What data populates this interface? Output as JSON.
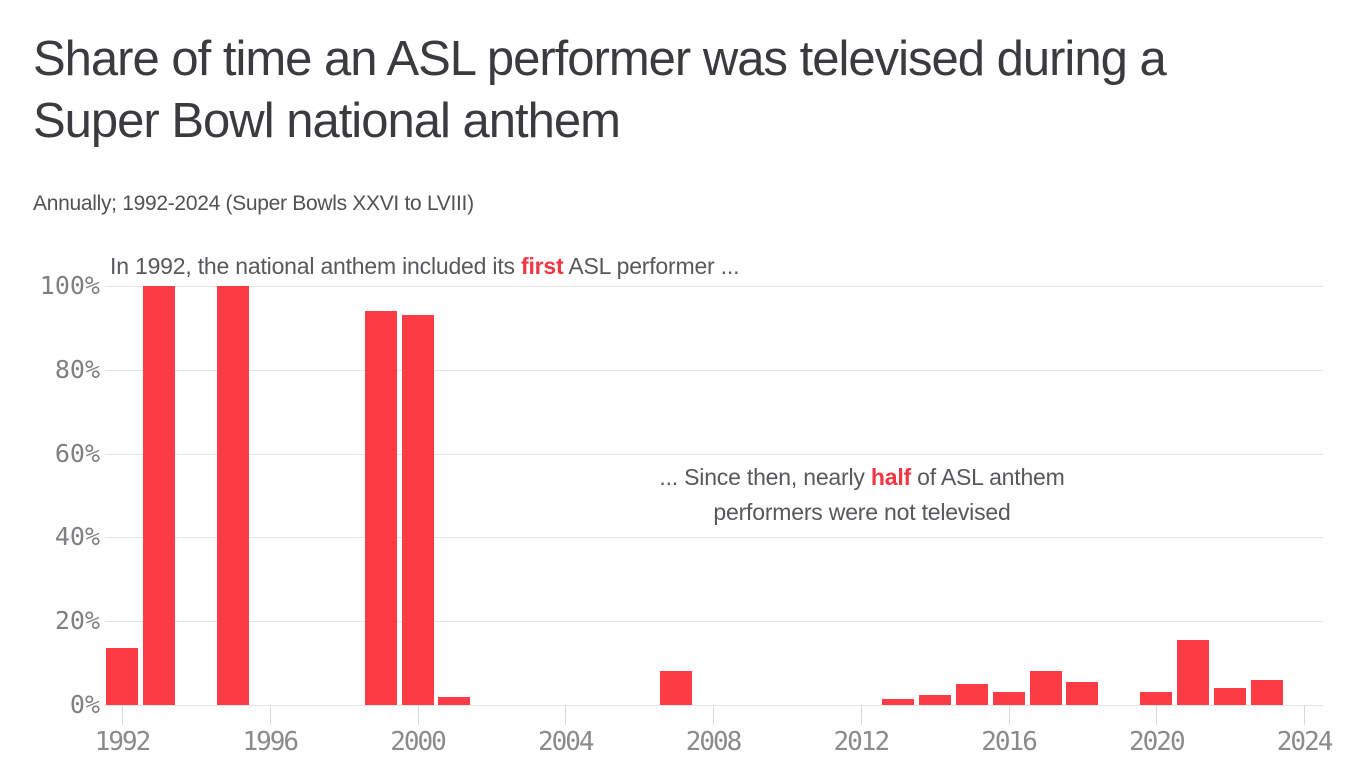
{
  "palette": {
    "bar_red": "#fd3b44",
    "accent_red": "#f43542",
    "title_gray": "#3b3b3f",
    "annotation_gray": "#58585c",
    "axis_label_gray": "#8b8b8e",
    "gridline_gray": "#e6e6e8"
  },
  "header": {
    "title": "Share of time an ASL performer was televised during a Super Bowl national anthem",
    "title_lines": [
      "Share of time an ASL performer was televised during a",
      "Super Bowl national anthem"
    ],
    "subtitle": "Annually; 1992-2024 (Super Bowls XXVI to LVIII)"
  },
  "annotations": {
    "first": {
      "pre": "In 1992, the national anthem included its ",
      "highlight": "first",
      "post": " ASL performer ..."
    },
    "since": {
      "pre": "... Since then, nearly ",
      "highlight": "half",
      "post": " of ASL anthem",
      "line2": "performers were not televised"
    }
  },
  "chart_data": {
    "type": "bar",
    "title": "Share of time an ASL performer was televised during a Super Bowl national anthem",
    "subtitle": "Annually; 1992-2024 (Super Bowls XXVI to LVIII)",
    "xlabel": "",
    "ylabel": "",
    "x": [
      1992,
      1993,
      1995,
      1999,
      2000,
      2001,
      2007,
      2013,
      2014,
      2015,
      2016,
      2017,
      2018,
      2020,
      2021,
      2022,
      2023
    ],
    "values": [
      13.5,
      100,
      100,
      94,
      93,
      2,
      8,
      1.5,
      2.5,
      5,
      3,
      8,
      5.5,
      3,
      15.5,
      4,
      6
    ],
    "xlim": [
      1992,
      2024
    ],
    "ylim": [
      0,
      100
    ],
    "xticks": [
      1992,
      1996,
      2000,
      2004,
      2008,
      2012,
      2016,
      2020,
      2024
    ],
    "yticks": [
      0,
      20,
      40,
      60,
      80,
      100
    ],
    "ytick_labels": [
      "0%",
      "20%",
      "40%",
      "60%",
      "80%",
      "100%"
    ],
    "grid": "horizontal",
    "legend": "none",
    "bar_color": "#fd3b44"
  }
}
